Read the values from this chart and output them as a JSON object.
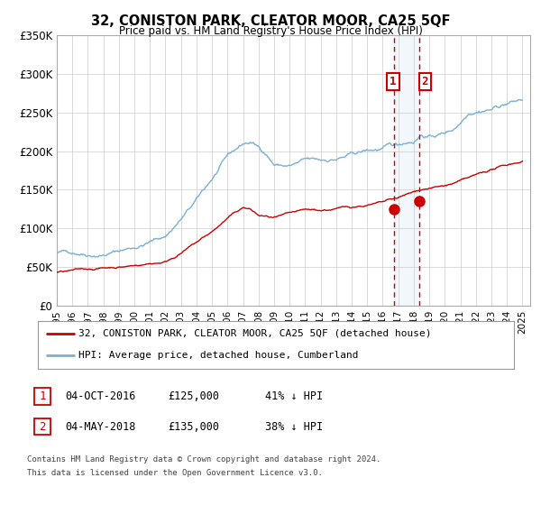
{
  "title": "32, CONISTON PARK, CLEATOR MOOR, CA25 5QF",
  "subtitle": "Price paid vs. HM Land Registry's House Price Index (HPI)",
  "ylim": [
    0,
    350000
  ],
  "yticks": [
    0,
    50000,
    100000,
    150000,
    200000,
    250000,
    300000,
    350000
  ],
  "ytick_labels": [
    "£0",
    "£50K",
    "£100K",
    "£150K",
    "£200K",
    "£250K",
    "£300K",
    "£350K"
  ],
  "xlim_start": 1995.0,
  "xlim_end": 2025.5,
  "xticks": [
    1995,
    1996,
    1997,
    1998,
    1999,
    2000,
    2001,
    2002,
    2003,
    2004,
    2005,
    2006,
    2007,
    2008,
    2009,
    2010,
    2011,
    2012,
    2013,
    2014,
    2015,
    2016,
    2017,
    2018,
    2019,
    2020,
    2021,
    2022,
    2023,
    2024,
    2025
  ],
  "hpi_color": "#7ab0d4",
  "price_color": "#cc0000",
  "marker_color": "#cc0000",
  "vline1_x": 2016.75,
  "vline2_x": 2018.33,
  "point1_x": 2016.75,
  "point1_y": 125000,
  "point2_x": 2018.33,
  "point2_y": 135000,
  "label1": "32, CONISTON PARK, CLEATOR MOOR, CA25 5QF (detached house)",
  "label2": "HPI: Average price, detached house, Cumberland",
  "transaction1_date": "04-OCT-2016",
  "transaction1_price": "£125,000",
  "transaction1_hpi": "41% ↓ HPI",
  "transaction2_date": "04-MAY-2018",
  "transaction2_price": "£135,000",
  "transaction2_hpi": "38% ↓ HPI",
  "footer1": "Contains HM Land Registry data © Crown copyright and database right 2024.",
  "footer2": "This data is licensed under the Open Government Licence v3.0.",
  "background_color": "#ffffff",
  "plot_bg_color": "#ffffff",
  "grid_color": "#cccccc",
  "shade_color": "#cce0f5"
}
